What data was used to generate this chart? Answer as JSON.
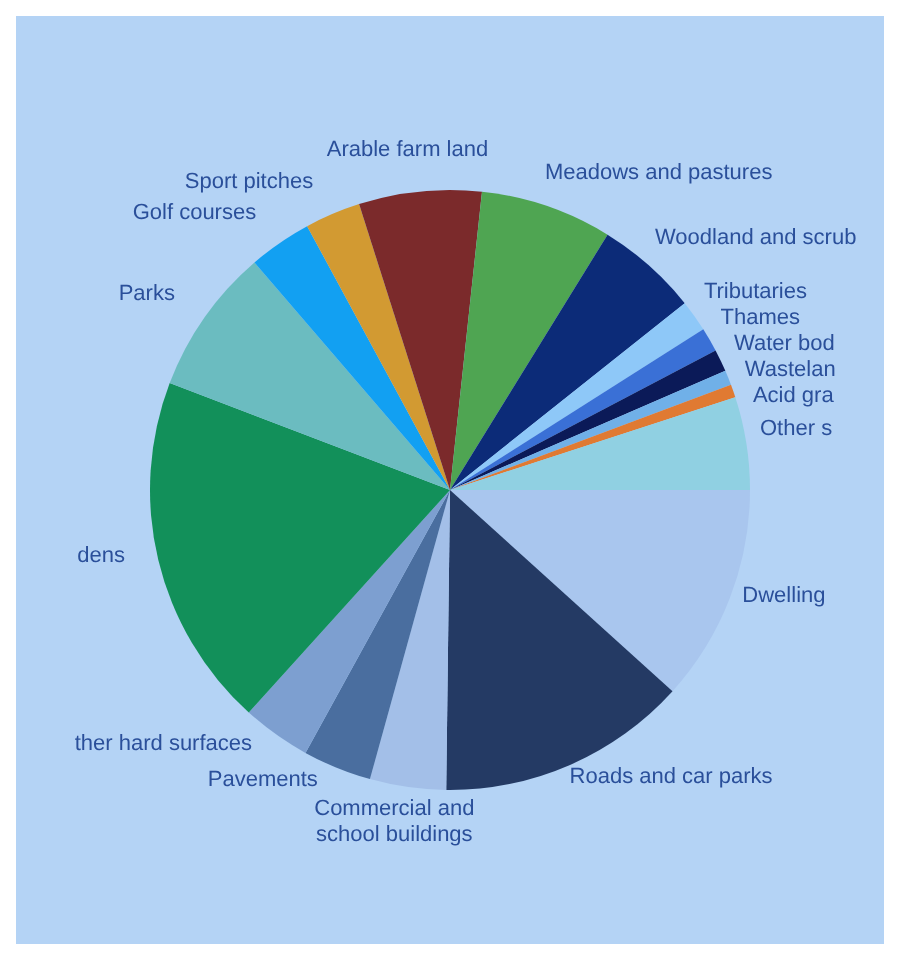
{
  "chart_data": {
    "type": "pie",
    "categories": [
      "Dwelling",
      "Roads and car parks",
      "Commercial and school buildings",
      "Pavements",
      "ther hard surfaces",
      "dens",
      "Parks",
      "Golf courses",
      "Sport pitches",
      "Arable farm land",
      "Meadows and pastures",
      "Woodland and scrub",
      "Tributaries",
      "Thames",
      "Water bod",
      "Wastelan",
      "Acid gra",
      "Other s"
    ],
    "values": [
      11.7,
      13.5,
      4.1,
      3.7,
      3.7,
      19.1,
      7.9,
      3.4,
      3.0,
      6.6,
      7.1,
      5.5,
      1.7,
      1.3,
      1.2,
      0.8,
      0.7,
      5.0
    ],
    "colors": [
      "#a9c6ee",
      "#243a64",
      "#a3bfe8",
      "#4a6e9f",
      "#7d9fd0",
      "#12905a",
      "#6bbcc0",
      "#12a0f2",
      "#d29a32",
      "#7b2a2b",
      "#4fa552",
      "#0c2b78",
      "#8ec8f8",
      "#3a70d6",
      "#0b1a58",
      "#70b0e8",
      "#e07a32",
      "#90d0e2"
    ]
  }
}
